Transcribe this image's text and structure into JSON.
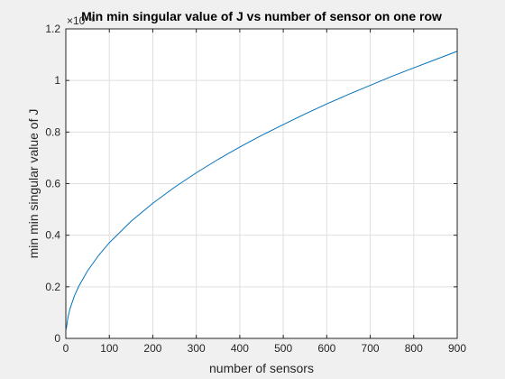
{
  "chart_data": {
    "type": "line",
    "title": "Min min singular value of J vs number of sensor on one row",
    "xlabel": "number of sensors",
    "ylabel": "min min singular value of J",
    "y_exponent_label": "×10⁻⁶",
    "xlim": [
      0,
      900
    ],
    "ylim": [
      0,
      1.2
    ],
    "xticks": [
      0,
      100,
      200,
      300,
      400,
      500,
      600,
      700,
      800,
      900
    ],
    "xtick_labels": [
      "0",
      "100",
      "200",
      "300",
      "400",
      "500",
      "600",
      "700",
      "800",
      "900"
    ],
    "yticks": [
      0,
      0.2,
      0.4,
      0.6,
      0.8,
      1.0,
      1.2
    ],
    "ytick_labels": [
      "0",
      "0.2",
      "0.4",
      "0.6",
      "0.8",
      "1",
      "1.2"
    ],
    "grid": true,
    "series": [
      {
        "color": "#0072BD",
        "x": [
          1,
          5,
          10,
          20,
          30,
          50,
          75,
          100,
          150,
          200,
          250,
          300,
          350,
          400,
          450,
          500,
          550,
          600,
          650,
          700,
          750,
          800,
          850,
          900
        ],
        "y": [
          0.037,
          0.083,
          0.117,
          0.166,
          0.203,
          0.262,
          0.321,
          0.371,
          0.454,
          0.524,
          0.586,
          0.642,
          0.694,
          0.742,
          0.787,
          0.829,
          0.87,
          0.909,
          0.946,
          0.981,
          1.016,
          1.049,
          1.081,
          1.113
        ]
      }
    ]
  }
}
